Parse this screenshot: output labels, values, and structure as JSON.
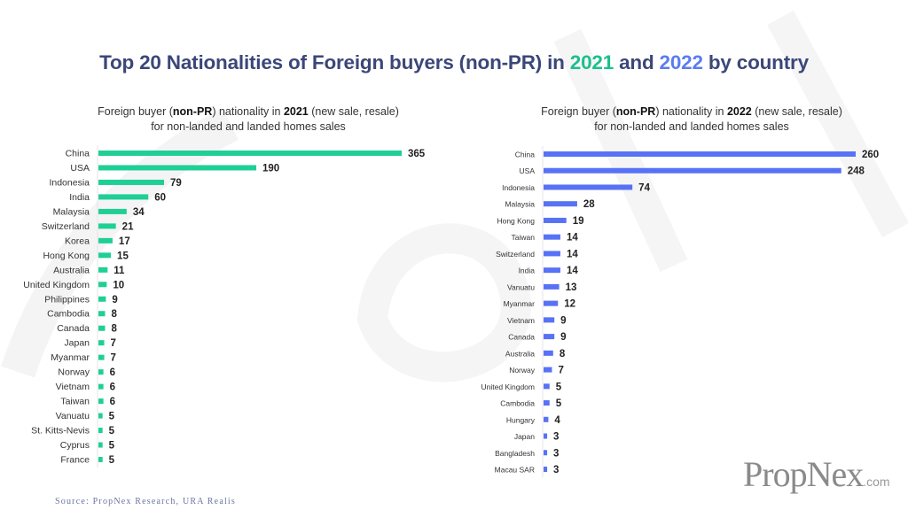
{
  "title": {
    "prefix": "Top 20 Nationalities of Foreign buyers (non-PR) in ",
    "year1": "2021",
    "mid": " and ",
    "year2": "2022",
    "suffix": " by country"
  },
  "colors": {
    "title": "#3b4778",
    "green": "#1fcf95",
    "blue": "#5872f5"
  },
  "chart_data": [
    {
      "type": "bar",
      "orientation": "horizontal",
      "title_parts": {
        "a": "Foreign buyer (",
        "b": "non-PR",
        "c": ") nationality in ",
        "d": "2021",
        "e": " (new sale, resale)",
        "line2": "for non-landed and landed homes sales"
      },
      "categories": [
        "China",
        "USA",
        "Indonesia",
        "India",
        "Malaysia",
        "Switzerland",
        "Korea",
        "Hong Kong",
        "Australia",
        "United Kingdom",
        "Philippines",
        "Cambodia",
        "Canada",
        "Japan",
        "Myanmar",
        "Norway",
        "Vietnam",
        "Taiwan",
        "Vanuatu",
        "St. Kitts-Nevis",
        "Cyprus",
        "France"
      ],
      "values": [
        365,
        190,
        79,
        60,
        34,
        21,
        17,
        15,
        11,
        10,
        9,
        8,
        8,
        7,
        7,
        6,
        6,
        6,
        5,
        5,
        5,
        5
      ],
      "color": "#1fcf95"
    },
    {
      "type": "bar",
      "orientation": "horizontal",
      "title_parts": {
        "a": "Foreign buyer (",
        "b": "non-PR",
        "c": ") nationality in ",
        "d": "2022",
        "e": " (new sale, resale)",
        "line2": "for non-landed and landed homes sales"
      },
      "categories": [
        "China",
        "USA",
        "Indonesia",
        "Malaysia",
        "Hong Kong",
        "Taiwan",
        "Switzerland",
        "India",
        "Vanuatu",
        "Myanmar",
        "Vietnam",
        "Canada",
        "Australia",
        "Norway",
        "United Kingdom",
        "Cambodia",
        "Hungary",
        "Japan",
        "Bangladesh",
        "Macau SAR"
      ],
      "values": [
        260,
        248,
        74,
        28,
        19,
        14,
        14,
        14,
        13,
        12,
        9,
        9,
        8,
        7,
        5,
        5,
        4,
        3,
        3,
        3
      ],
      "color": "#5872f5"
    }
  ],
  "source": "Source: PropNex Research, URA Realis",
  "logo": {
    "main": "PropNex",
    "suffix": ".com"
  },
  "watermark": "PropNex"
}
